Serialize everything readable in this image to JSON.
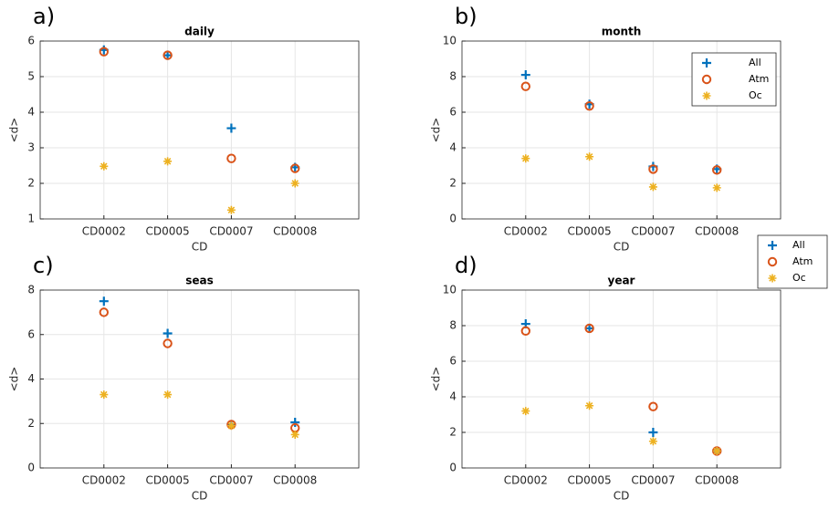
{
  "chart_data": [
    {
      "type": "scatter",
      "panel_label": "a)",
      "title": "daily",
      "x_label": "CD",
      "y_label": "<d>",
      "categories": [
        "CD0002",
        "CD0005",
        "CD0007",
        "CD0008"
      ],
      "ylim": [
        1,
        6
      ],
      "yticks": [
        1,
        2,
        3,
        4,
        5,
        6
      ],
      "grid": true,
      "series": [
        {
          "name": "All",
          "color": "#0072bd",
          "marker": "plus",
          "values": [
            5.75,
            5.6,
            3.55,
            2.45
          ]
        },
        {
          "name": "Atm",
          "color": "#d95319",
          "marker": "circle",
          "values": [
            5.7,
            5.6,
            2.7,
            2.42
          ]
        },
        {
          "name": "Oc",
          "color": "#edb120",
          "marker": "asterisk",
          "values": [
            2.48,
            2.62,
            1.25,
            2.0
          ]
        }
      ]
    },
    {
      "type": "scatter",
      "panel_label": "b)",
      "title": "month",
      "x_label": "CD",
      "y_label": "<d>",
      "categories": [
        "CD0002",
        "CD0005",
        "CD0007",
        "CD0008"
      ],
      "ylim": [
        0,
        10
      ],
      "yticks": [
        0,
        2,
        4,
        6,
        8,
        10
      ],
      "grid": true,
      "legend": "northeast",
      "series": [
        {
          "name": "All",
          "color": "#0072bd",
          "marker": "plus",
          "values": [
            8.1,
            6.45,
            2.95,
            2.8
          ]
        },
        {
          "name": "Atm",
          "color": "#d95319",
          "marker": "circle",
          "values": [
            7.45,
            6.35,
            2.8,
            2.75
          ]
        },
        {
          "name": "Oc",
          "color": "#edb120",
          "marker": "asterisk",
          "values": [
            3.4,
            3.5,
            1.8,
            1.75
          ]
        }
      ]
    },
    {
      "type": "scatter",
      "panel_label": "c)",
      "title": "seas",
      "x_label": "CD",
      "y_label": "<d>",
      "categories": [
        "CD0002",
        "CD0005",
        "CD0007",
        "CD0008"
      ],
      "ylim": [
        0,
        8
      ],
      "yticks": [
        0,
        2,
        4,
        6,
        8
      ],
      "grid": true,
      "series": [
        {
          "name": "All",
          "color": "#0072bd",
          "marker": "plus",
          "values": [
            7.5,
            6.05,
            1.95,
            2.05
          ]
        },
        {
          "name": "Atm",
          "color": "#d95319",
          "marker": "circle",
          "values": [
            7.0,
            5.6,
            1.95,
            1.8
          ]
        },
        {
          "name": "Oc",
          "color": "#edb120",
          "marker": "asterisk",
          "values": [
            3.3,
            3.3,
            1.9,
            1.5
          ]
        }
      ]
    },
    {
      "type": "scatter",
      "panel_label": "d)",
      "title": "year",
      "x_label": "CD",
      "y_label": "<d>",
      "categories": [
        "CD0002",
        "CD0005",
        "CD0007",
        "CD0008"
      ],
      "ylim": [
        0,
        10
      ],
      "yticks": [
        0,
        2,
        4,
        6,
        8,
        10
      ],
      "grid": true,
      "legend": "outside-northeast",
      "series": [
        {
          "name": "All",
          "color": "#0072bd",
          "marker": "plus",
          "values": [
            8.1,
            7.85,
            2.0,
            0.95
          ]
        },
        {
          "name": "Atm",
          "color": "#d95319",
          "marker": "circle",
          "values": [
            7.7,
            7.85,
            3.45,
            0.95
          ]
        },
        {
          "name": "Oc",
          "color": "#edb120",
          "marker": "asterisk",
          "values": [
            3.2,
            3.5,
            1.5,
            0.95
          ]
        }
      ]
    }
  ]
}
